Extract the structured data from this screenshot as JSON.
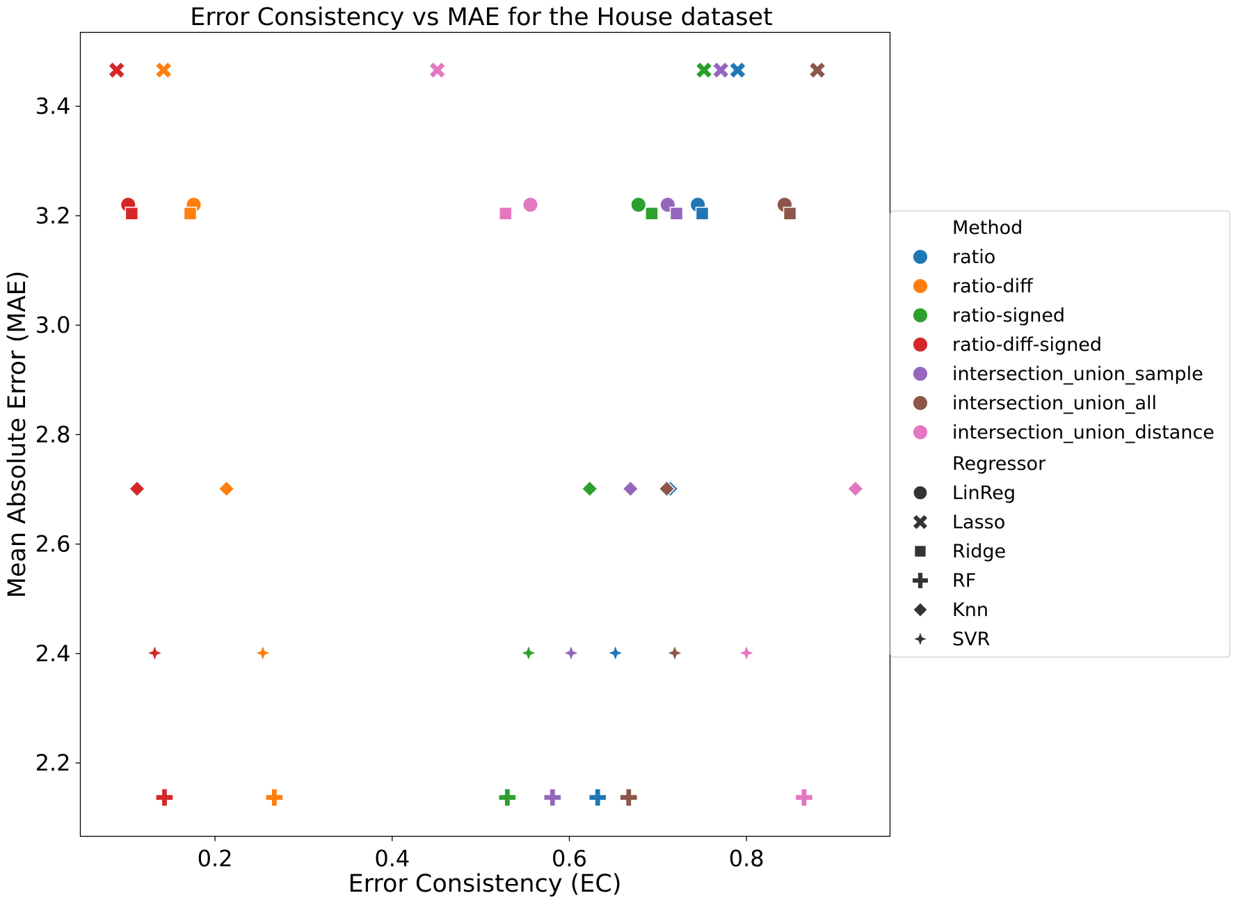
{
  "chart_data": {
    "type": "scatter",
    "title": "Error Consistency vs MAE for the House dataset",
    "xlabel": "Error Consistency (EC)",
    "ylabel": "Mean Absolute Error (MAE)",
    "xlim": [
      0.048,
      0.962
    ],
    "ylim": [
      2.066,
      3.535
    ],
    "x_ticks": [
      0.2,
      0.4,
      0.6,
      0.8
    ],
    "x_tick_labels": [
      "0.2",
      "0.4",
      "0.6",
      "0.8"
    ],
    "y_ticks": [
      2.2,
      2.4,
      2.6,
      2.8,
      3.0,
      3.2,
      3.4
    ],
    "y_tick_labels": [
      "2.2",
      "2.4",
      "2.6",
      "2.8",
      "3.0",
      "3.2",
      "3.4"
    ],
    "grid": false,
    "legend": {
      "placement": "outside-right",
      "method_title": "Method",
      "regressor_title": "Regressor",
      "methods": [
        {
          "name": "ratio",
          "color": "#1f77b4"
        },
        {
          "name": "ratio-diff",
          "color": "#ff7f0e"
        },
        {
          "name": "ratio-signed",
          "color": "#2ca02c"
        },
        {
          "name": "ratio-diff-signed",
          "color": "#d62728"
        },
        {
          "name": "intersection_union_sample",
          "color": "#9467bd"
        },
        {
          "name": "intersection_union_all",
          "color": "#8c564b"
        },
        {
          "name": "intersection_union_distance",
          "color": "#e377c2"
        }
      ],
      "regressors": [
        {
          "name": "LinReg",
          "marker": "circle"
        },
        {
          "name": "Lasso",
          "marker": "x"
        },
        {
          "name": "Ridge",
          "marker": "square"
        },
        {
          "name": "RF",
          "marker": "plus"
        },
        {
          "name": "Knn",
          "marker": "diamond"
        },
        {
          "name": "SVR",
          "marker": "star4"
        }
      ]
    },
    "points": [
      {
        "method": "ratio",
        "regressor": "LinReg",
        "x": 0.745,
        "y": 3.22
      },
      {
        "method": "ratio",
        "regressor": "Lasso",
        "x": 0.79,
        "y": 3.466
      },
      {
        "method": "ratio",
        "regressor": "Ridge",
        "x": 0.75,
        "y": 3.204
      },
      {
        "method": "ratio",
        "regressor": "RF",
        "x": 0.632,
        "y": 2.137
      },
      {
        "method": "ratio",
        "regressor": "Knn",
        "x": 0.714,
        "y": 2.701
      },
      {
        "method": "ratio",
        "regressor": "SVR",
        "x": 0.652,
        "y": 2.401
      },
      {
        "method": "ratio-diff",
        "regressor": "LinReg",
        "x": 0.176,
        "y": 3.22
      },
      {
        "method": "ratio-diff",
        "regressor": "Lasso",
        "x": 0.142,
        "y": 3.466
      },
      {
        "method": "ratio-diff",
        "regressor": "Ridge",
        "x": 0.172,
        "y": 3.204
      },
      {
        "method": "ratio-diff",
        "regressor": "RF",
        "x": 0.267,
        "y": 2.137
      },
      {
        "method": "ratio-diff",
        "regressor": "Knn",
        "x": 0.213,
        "y": 2.701
      },
      {
        "method": "ratio-diff",
        "regressor": "SVR",
        "x": 0.254,
        "y": 2.401
      },
      {
        "method": "ratio-signed",
        "regressor": "LinReg",
        "x": 0.678,
        "y": 3.22
      },
      {
        "method": "ratio-signed",
        "regressor": "Lasso",
        "x": 0.752,
        "y": 3.466
      },
      {
        "method": "ratio-signed",
        "regressor": "Ridge",
        "x": 0.693,
        "y": 3.204
      },
      {
        "method": "ratio-signed",
        "regressor": "RF",
        "x": 0.53,
        "y": 2.137
      },
      {
        "method": "ratio-signed",
        "regressor": "Knn",
        "x": 0.623,
        "y": 2.701
      },
      {
        "method": "ratio-signed",
        "regressor": "SVR",
        "x": 0.554,
        "y": 2.401
      },
      {
        "method": "ratio-diff-signed",
        "regressor": "LinReg",
        "x": 0.102,
        "y": 3.22
      },
      {
        "method": "ratio-diff-signed",
        "regressor": "Lasso",
        "x": 0.089,
        "y": 3.466
      },
      {
        "method": "ratio-diff-signed",
        "regressor": "Ridge",
        "x": 0.106,
        "y": 3.204
      },
      {
        "method": "ratio-diff-signed",
        "regressor": "RF",
        "x": 0.143,
        "y": 2.137
      },
      {
        "method": "ratio-diff-signed",
        "regressor": "Knn",
        "x": 0.112,
        "y": 2.701
      },
      {
        "method": "ratio-diff-signed",
        "regressor": "SVR",
        "x": 0.132,
        "y": 2.401
      },
      {
        "method": "intersection_union_sample",
        "regressor": "LinReg",
        "x": 0.711,
        "y": 3.22
      },
      {
        "method": "intersection_union_sample",
        "regressor": "Lasso",
        "x": 0.771,
        "y": 3.466
      },
      {
        "method": "intersection_union_sample",
        "regressor": "Ridge",
        "x": 0.721,
        "y": 3.204
      },
      {
        "method": "intersection_union_sample",
        "regressor": "RF",
        "x": 0.581,
        "y": 2.137
      },
      {
        "method": "intersection_union_sample",
        "regressor": "Knn",
        "x": 0.669,
        "y": 2.701
      },
      {
        "method": "intersection_union_sample",
        "regressor": "SVR",
        "x": 0.602,
        "y": 2.401
      },
      {
        "method": "intersection_union_all",
        "regressor": "LinReg",
        "x": 0.843,
        "y": 3.22
      },
      {
        "method": "intersection_union_all",
        "regressor": "Lasso",
        "x": 0.88,
        "y": 3.466
      },
      {
        "method": "intersection_union_all",
        "regressor": "Ridge",
        "x": 0.849,
        "y": 3.204
      },
      {
        "method": "intersection_union_all",
        "regressor": "RF",
        "x": 0.667,
        "y": 2.137
      },
      {
        "method": "intersection_union_all",
        "regressor": "Knn",
        "x": 0.71,
        "y": 2.701
      },
      {
        "method": "intersection_union_all",
        "regressor": "SVR",
        "x": 0.719,
        "y": 2.401
      },
      {
        "method": "intersection_union_distance",
        "regressor": "LinReg",
        "x": 0.556,
        "y": 3.22
      },
      {
        "method": "intersection_union_distance",
        "regressor": "Lasso",
        "x": 0.451,
        "y": 3.466
      },
      {
        "method": "intersection_union_distance",
        "regressor": "Ridge",
        "x": 0.528,
        "y": 3.204
      },
      {
        "method": "intersection_union_distance",
        "regressor": "RF",
        "x": 0.865,
        "y": 2.137
      },
      {
        "method": "intersection_union_distance",
        "regressor": "Knn",
        "x": 0.923,
        "y": 2.701
      },
      {
        "method": "intersection_union_distance",
        "regressor": "SVR",
        "x": 0.8,
        "y": 2.401
      }
    ]
  }
}
